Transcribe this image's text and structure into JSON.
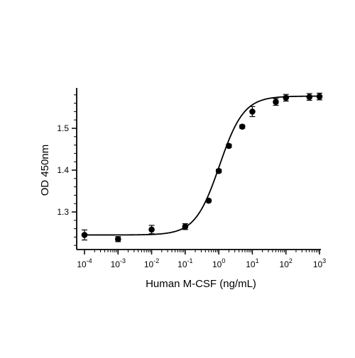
{
  "chart_data": {
    "type": "scatter",
    "xlabel": "Human M-CSF (ng/mL)",
    "ylabel": "OD 450nm",
    "xscale": "log10",
    "xlim": [
      0.0001,
      1000
    ],
    "ylim": [
      1.2,
      1.59
    ],
    "x_ticks": [
      {
        "value": 0.0001,
        "base": "10",
        "exp": "-4"
      },
      {
        "value": 0.001,
        "base": "10",
        "exp": "-3"
      },
      {
        "value": 0.01,
        "base": "10",
        "exp": "-2"
      },
      {
        "value": 0.1,
        "base": "10",
        "exp": "-1"
      },
      {
        "value": 1,
        "base": "10",
        "exp": "0"
      },
      {
        "value": 10,
        "base": "10",
        "exp": "1"
      },
      {
        "value": 100,
        "base": "10",
        "exp": "2"
      },
      {
        "value": 1000,
        "base": "10",
        "exp": "3"
      }
    ],
    "y_ticks": [
      {
        "value": 1.3,
        "label": "1.3"
      },
      {
        "value": 1.4,
        "label": "1.4"
      },
      {
        "value": 1.5,
        "label": "1.5"
      }
    ],
    "series": [
      {
        "points": [
          {
            "x": 0.0001,
            "y": 1.245,
            "err": 0.012
          },
          {
            "x": 0.001,
            "y": 1.235,
            "err": 0.006
          },
          {
            "x": 0.01,
            "y": 1.258,
            "err": 0.01
          },
          {
            "x": 0.1,
            "y": 1.265,
            "err": 0.007
          },
          {
            "x": 0.5,
            "y": 1.327,
            "err": 0.003
          },
          {
            "x": 1,
            "y": 1.398,
            "err": 0.004
          },
          {
            "x": 2,
            "y": 1.458,
            "err": 0.004
          },
          {
            "x": 5,
            "y": 1.504,
            "err": 0.004
          },
          {
            "x": 10,
            "y": 1.54,
            "err": 0.012
          },
          {
            "x": 50,
            "y": 1.563,
            "err": 0.008
          },
          {
            "x": 100,
            "y": 1.573,
            "err": 0.008
          },
          {
            "x": 500,
            "y": 1.575,
            "err": 0.008
          },
          {
            "x": 1000,
            "y": 1.576,
            "err": 0.008
          }
        ],
        "color": "#000000"
      }
    ],
    "fit_curve": {
      "model": "4PL",
      "bottom": 1.245,
      "top": 1.577,
      "ec50": 1.05,
      "hill": 1.2
    },
    "grid": false,
    "legend": "none"
  }
}
